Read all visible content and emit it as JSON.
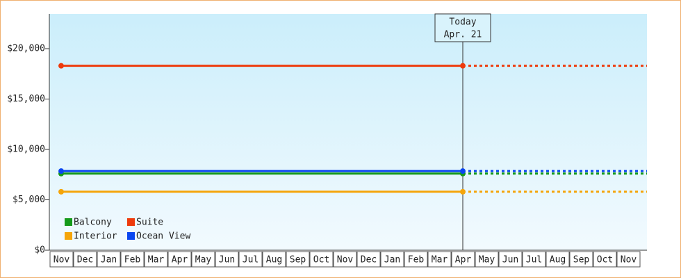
{
  "chart_data": {
    "type": "line",
    "categories": [
      "Nov",
      "Dec",
      "Jan",
      "Feb",
      "Mar",
      "Apr",
      "May",
      "Jun",
      "Jul",
      "Aug",
      "Sep",
      "Oct",
      "Nov",
      "Dec",
      "Jan",
      "Feb",
      "Mar",
      "Apr",
      "May",
      "Jun",
      "Jul",
      "Aug",
      "Sep",
      "Oct",
      "Nov"
    ],
    "today": {
      "title": "Today",
      "date": "Apr. 21"
    },
    "series": [
      {
        "name": "Balcony",
        "color": "#159a1a",
        "values": [
          7600,
          7600,
          7600,
          7600,
          7600,
          7600,
          7600,
          7600,
          7600,
          7600,
          7600,
          7600,
          7600,
          7600,
          7600,
          7600,
          7600,
          7600,
          7600,
          7600,
          7600,
          7600,
          7600,
          7600,
          7600
        ]
      },
      {
        "name": "Suite",
        "color": "#ee3a0c",
        "values": [
          18300,
          18300,
          18300,
          18300,
          18300,
          18300,
          18300,
          18300,
          18300,
          18300,
          18300,
          18300,
          18300,
          18300,
          18300,
          18300,
          18300,
          18300,
          18300,
          18300,
          18300,
          18300,
          18300,
          18300,
          18300
        ]
      },
      {
        "name": "Interior",
        "color": "#f5a50a",
        "values": [
          5800,
          5800,
          5800,
          5800,
          5800,
          5800,
          5800,
          5800,
          5800,
          5800,
          5800,
          5800,
          5800,
          5800,
          5800,
          5800,
          5800,
          5800,
          5800,
          5800,
          5800,
          5800,
          5800,
          5800,
          5800
        ]
      },
      {
        "name": "Ocean View",
        "color": "#0a46f0",
        "values": [
          7850,
          7850,
          7850,
          7850,
          7850,
          7850,
          7850,
          7850,
          7850,
          7850,
          7850,
          7850,
          7850,
          7850,
          7850,
          7850,
          7850,
          7850,
          7850,
          7850,
          7850,
          7850,
          7850,
          7850,
          7850
        ]
      }
    ],
    "ylim": [
      0,
      23450
    ],
    "yticks": [
      {
        "value": 0,
        "label": "$0"
      },
      {
        "value": 5000,
        "label": "$5,000"
      },
      {
        "value": 10000,
        "label": "$10,000"
      },
      {
        "value": 15000,
        "label": "$15,000"
      },
      {
        "value": 20000,
        "label": "$20,000"
      }
    ],
    "legend": "bottom-left"
  }
}
